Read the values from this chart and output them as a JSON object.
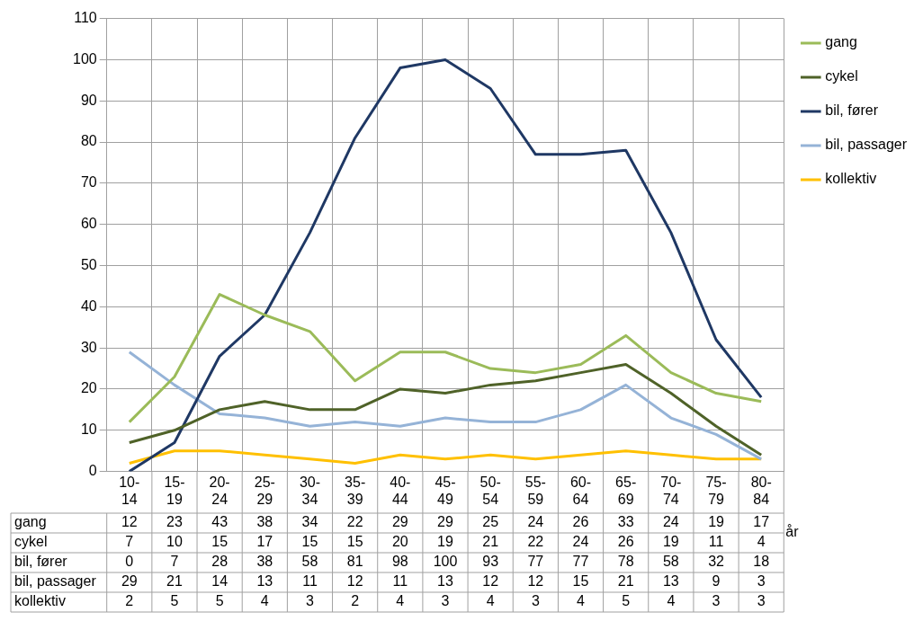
{
  "chart_data": {
    "type": "line",
    "xlabel": "år",
    "categories": [
      "10-14",
      "15-19",
      "20-24",
      "25-29",
      "30-34",
      "35-39",
      "40-44",
      "45-49",
      "50-54",
      "55-59",
      "60-64",
      "65-69",
      "70-74",
      "75-79",
      "80-84"
    ],
    "series": [
      {
        "name": "gang",
        "color": "#9bbb59",
        "values": [
          12,
          23,
          43,
          38,
          34,
          22,
          29,
          29,
          25,
          24,
          26,
          33,
          24,
          19,
          17
        ]
      },
      {
        "name": "cykel",
        "color": "#4f6228",
        "values": [
          7,
          10,
          15,
          17,
          15,
          15,
          20,
          19,
          21,
          22,
          24,
          26,
          19,
          11,
          4
        ]
      },
      {
        "name": "bil, fører",
        "color": "#1f3864",
        "values": [
          0,
          7,
          28,
          38,
          58,
          81,
          98,
          100,
          93,
          77,
          77,
          78,
          58,
          32,
          18
        ]
      },
      {
        "name": "bil, passager",
        "color": "#95b3d7",
        "values": [
          29,
          21,
          14,
          13,
          11,
          12,
          11,
          13,
          12,
          12,
          15,
          21,
          13,
          9,
          3
        ]
      },
      {
        "name": "kollektiv",
        "color": "#ffc000",
        "values": [
          2,
          5,
          5,
          4,
          3,
          2,
          4,
          3,
          4,
          3,
          4,
          5,
          4,
          3,
          3
        ]
      }
    ],
    "ylim": [
      0,
      110
    ],
    "yticks": [
      0,
      10,
      20,
      30,
      40,
      50,
      60,
      70,
      80,
      90,
      100,
      110
    ],
    "grid": true,
    "legend": "right",
    "data_labels": true,
    "marker": "none",
    "line_style": "solid"
  }
}
